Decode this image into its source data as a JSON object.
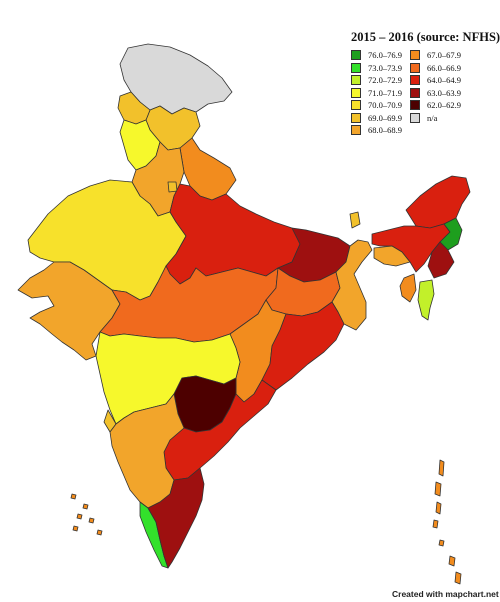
{
  "legend": {
    "title": "2015 – 2016 (source: NFHS)",
    "col1": [
      {
        "label": "76.0–76.9",
        "color": "#1e9e1e"
      },
      {
        "label": "73.0–73.9",
        "color": "#33e12b"
      },
      {
        "label": "72.0–72.9",
        "color": "#c2f02a"
      },
      {
        "label": "71.0–71.9",
        "color": "#f6f82c"
      },
      {
        "label": "70.0–70.9",
        "color": "#f7e12b"
      },
      {
        "label": "69.0–69.9",
        "color": "#f2c12b"
      },
      {
        "label": "68.0–68.9",
        "color": "#f2a52b"
      }
    ],
    "col2": [
      {
        "label": "67.0–67.9",
        "color": "#f28c1e"
      },
      {
        "label": "66.0–66.9",
        "color": "#f06a1e"
      },
      {
        "label": "64.0–64.9",
        "color": "#d9200f"
      },
      {
        "label": "63.0–63.9",
        "color": "#9e1010"
      },
      {
        "label": "62.0–62.9",
        "color": "#4d0000"
      },
      {
        "label": "n/a",
        "color": "#d9d9d9"
      }
    ]
  },
  "credit": "Created with mapchart.net",
  "regions": {
    "jammu_kashmir": {
      "range": "n/a",
      "color": "#d9d9d9"
    },
    "himachal_pradesh": {
      "range": "69.0–69.9",
      "color": "#f2c12b"
    },
    "punjab": {
      "range": "71.0–71.9",
      "color": "#f6f82c"
    },
    "haryana": {
      "range": "68.0–68.9",
      "color": "#f2a52b"
    },
    "delhi": {
      "range": "69.0–69.9",
      "color": "#f2c12b"
    },
    "uttarakhand": {
      "range": "67.0–67.9",
      "color": "#f28c1e"
    },
    "rajasthan": {
      "range": "70.0–70.9",
      "color": "#f7e12b"
    },
    "uttar_pradesh": {
      "range": "64.0–64.9",
      "color": "#d9200f"
    },
    "bihar": {
      "range": "63.0–63.9",
      "color": "#9e1010"
    },
    "gujarat": {
      "range": "68.0–68.9",
      "color": "#f2a52b"
    },
    "madhya_pradesh": {
      "range": "66.0–66.9",
      "color": "#f06a1e"
    },
    "jharkhand": {
      "range": "66.0–66.9",
      "color": "#f06a1e"
    },
    "west_bengal": {
      "range": "68.0–68.9",
      "color": "#f2a52b"
    },
    "chhattisgarh": {
      "range": "67.0–67.9",
      "color": "#f28c1e"
    },
    "odisha": {
      "range": "64.0–64.9",
      "color": "#d9200f"
    },
    "maharashtra": {
      "range": "71.0–71.9",
      "color": "#f6f82c"
    },
    "telangana": {
      "range": "62.0–62.9",
      "color": "#4d0000"
    },
    "andhra_pradesh": {
      "range": "64.0–64.9",
      "color": "#d9200f"
    },
    "karnataka": {
      "range": "68.0–68.9",
      "color": "#f2a52b"
    },
    "goa": {
      "range": "69.0–69.9",
      "color": "#f2c12b"
    },
    "kerala": {
      "range": "73.0–73.9",
      "color": "#33e12b"
    },
    "tamil_nadu": {
      "range": "63.0–63.9",
      "color": "#9e1010"
    },
    "sikkim": {
      "range": "69.0–69.9",
      "color": "#f2c12b"
    },
    "arunachal_pradesh": {
      "range": "64.0–64.9",
      "color": "#d9200f"
    },
    "assam": {
      "range": "64.0–64.9",
      "color": "#d9200f"
    },
    "meghalaya": {
      "range": "68.0–68.9",
      "color": "#f2a52b"
    },
    "nagaland": {
      "range": "76.0–76.9",
      "color": "#1e9e1e"
    },
    "manipur": {
      "range": "63.0–63.9",
      "color": "#9e1010"
    },
    "mizoram": {
      "range": "72.0–72.9",
      "color": "#c2f02a"
    },
    "tripura": {
      "range": "67.0–67.9",
      "color": "#f28c1e"
    },
    "andaman_nicobar": {
      "range": "67.0–67.9",
      "color": "#f28c1e"
    },
    "lakshadweep": {
      "range": "67.0–67.9",
      "color": "#f28c1e"
    }
  }
}
